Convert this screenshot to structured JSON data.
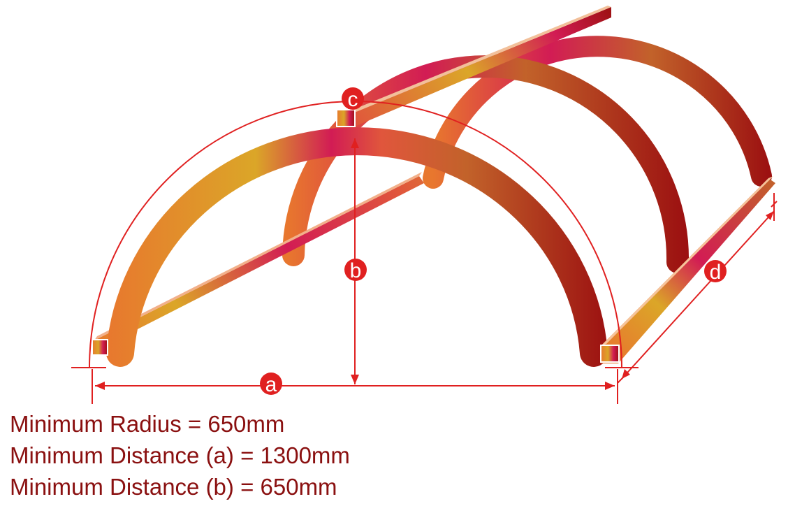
{
  "markers": {
    "a": "a",
    "b": "b",
    "c": "c",
    "d": "d"
  },
  "specs": [
    "Minimum Radius = 650mm",
    "Minimum Distance (a) = 1300mm",
    "Minimum Distance (b) = 650mm"
  ],
  "colors": {
    "dimension_line": "#e02020",
    "marker_fill": "#e02020",
    "spec_text": "#8a1010",
    "gradient_orange": "#e8772e",
    "gradient_gold": "#dba628",
    "gradient_magenta": "#d21c54",
    "gradient_brown": "#c2622a",
    "gradient_dark_red": "#9c1111"
  }
}
